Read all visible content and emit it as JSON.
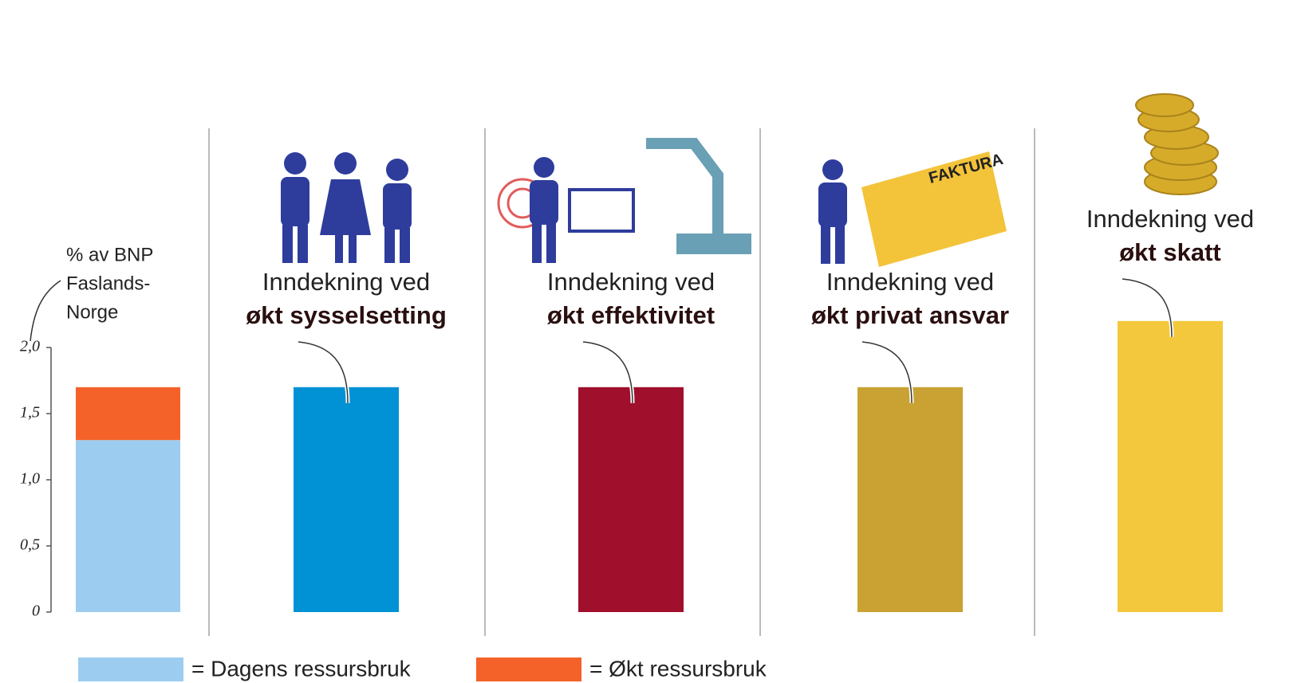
{
  "chart_data": {
    "type": "bar",
    "ylabel": [
      "% av BNP",
      "Faslands-",
      "Norge"
    ],
    "ylim": [
      0,
      2
    ],
    "yticks": [
      0,
      {
        "value": 0.5,
        "label": "0,5"
      },
      {
        "value": 1,
        "label": "1,0"
      },
      {
        "value": 1.5,
        "label": "1,5"
      },
      {
        "value": 2,
        "label": "2,0"
      }
    ],
    "series": [
      {
        "name": "= Dagens ressursbruk",
        "color": "#9ccdf0",
        "values": [
          1.3
        ]
      },
      {
        "name": "= Økt ressursbruk",
        "color": "#f4622a",
        "values": [
          0.4
        ]
      }
    ],
    "scenarios": [
      {
        "label": [
          "Inndekning ved",
          "økt sysselsetting"
        ],
        "value": 1.7,
        "color": "#0191d5"
      },
      {
        "label": [
          "Inndekning ved",
          "økt effektivitet"
        ],
        "value": 1.7,
        "color": "#a00f2c"
      },
      {
        "label": [
          "Inndekning ved",
          "økt privat ansvar"
        ],
        "value": 1.7,
        "color": "#c9a233"
      },
      {
        "label": [
          "Inndekning ved",
          "økt skatt"
        ],
        "value": 2.2,
        "color": "#f3c83c"
      }
    ]
  }
}
